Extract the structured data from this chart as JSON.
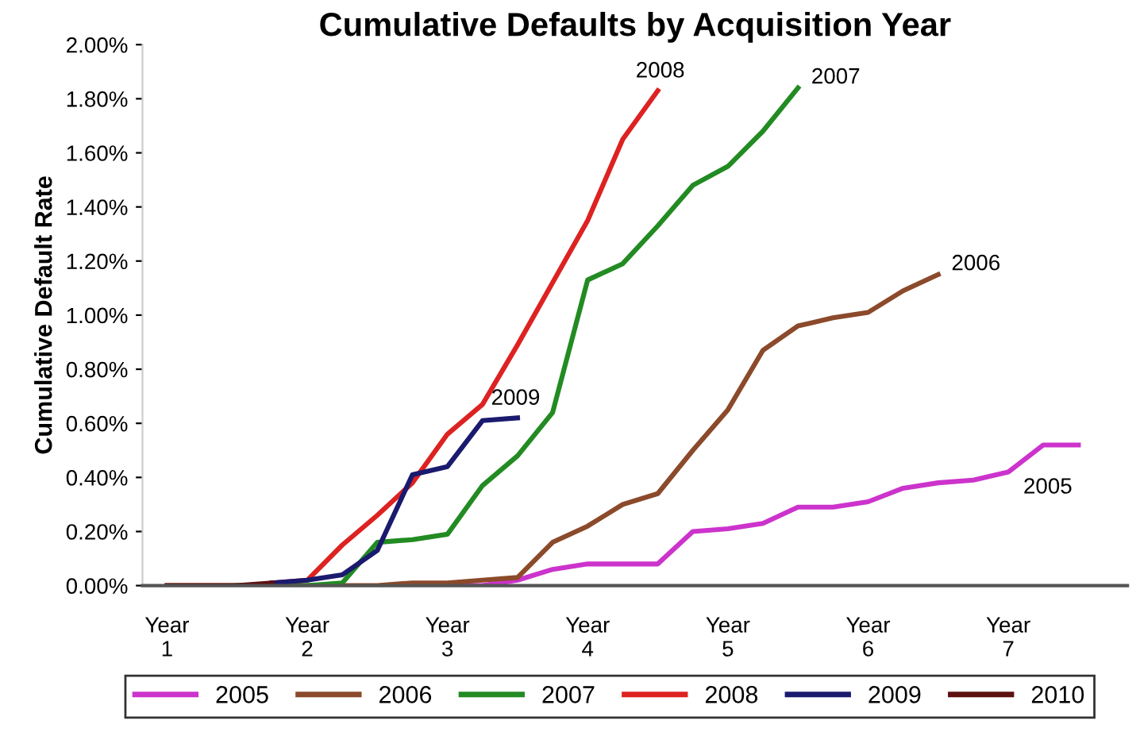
{
  "chart_data": {
    "type": "line",
    "title": "Cumulative Defaults by Acquisition Year",
    "ylabel": "Cumulative Default Rate",
    "categories": [
      "Year\n1",
      null,
      null,
      null,
      "Year\n2",
      null,
      null,
      null,
      "Year\n3",
      null,
      null,
      null,
      "Year\n4",
      null,
      null,
      null,
      "Year\n5",
      null,
      null,
      null,
      "Year\n6",
      null,
      null,
      null,
      "Year\n7",
      null,
      null
    ],
    "ylim": [
      0,
      2.0
    ],
    "yticks": [
      {
        "value": 0,
        "label": "0.00%"
      },
      {
        "value": 0.2,
        "label": "0.20%"
      },
      {
        "value": 0.4,
        "label": "0.40%"
      },
      {
        "value": 0.6,
        "label": "0.60%"
      },
      {
        "value": 0.8,
        "label": "0.80%"
      },
      {
        "value": 1.0,
        "label": "1.00%"
      },
      {
        "value": 1.2,
        "label": "1.20%"
      },
      {
        "value": 1.4,
        "label": "1.40%"
      },
      {
        "value": 1.6,
        "label": "1.60%"
      },
      {
        "value": 1.8,
        "label": "1.80%"
      },
      {
        "value": 2.0,
        "label": "2.00%"
      }
    ],
    "grid": false,
    "legend": "bottom",
    "marker": "none",
    "line_style": "solid",
    "series": [
      {
        "name": "2005",
        "color": "#cc33cc",
        "values": [
          null,
          null,
          null,
          null,
          null,
          null,
          null,
          null,
          0,
          0,
          0.02,
          0.06,
          0.08,
          0.08,
          0.08,
          0.2,
          0.21,
          0.23,
          0.29,
          0.29,
          0.31,
          0.36,
          0.38,
          0.39,
          0.42,
          0.52,
          0.52
        ]
      },
      {
        "name": "2006",
        "color": "#8b4a2b",
        "values": [
          0,
          0,
          0,
          0,
          0,
          0,
          0,
          0.01,
          0.01,
          0.02,
          0.03,
          0.16,
          0.22,
          0.3,
          0.34,
          0.5,
          0.65,
          0.87,
          0.96,
          0.99,
          1.01,
          1.09,
          1.15,
          null,
          null,
          null,
          null
        ]
      },
      {
        "name": "2007",
        "color": "#228b22",
        "values": [
          null,
          null,
          0,
          0,
          0,
          0.01,
          0.16,
          0.17,
          0.19,
          0.37,
          0.48,
          0.64,
          1.13,
          1.19,
          1.33,
          1.48,
          1.55,
          1.68,
          1.84,
          null,
          null,
          null,
          null,
          null,
          null,
          null,
          null
        ]
      },
      {
        "name": "2008",
        "color": "#dd2222",
        "values": [
          null,
          null,
          null,
          0.01,
          0.02,
          0.15,
          0.26,
          0.38,
          0.56,
          0.67,
          0.89,
          1.12,
          1.35,
          1.65,
          1.83,
          null,
          null,
          null,
          null,
          null,
          null,
          null,
          null,
          null,
          null,
          null,
          null
        ]
      },
      {
        "name": "2009",
        "color": "#1a1a6e",
        "values": [
          null,
          null,
          null,
          0.01,
          0.02,
          0.04,
          0.13,
          0.41,
          0.44,
          0.61,
          0.62,
          null,
          null,
          null,
          null,
          null,
          null,
          null,
          null,
          null,
          null,
          null,
          null,
          null,
          null,
          null,
          null
        ]
      },
      {
        "name": "2010",
        "color": "#5c1010",
        "values": [
          0,
          0,
          0,
          0.01,
          null,
          null,
          null,
          null,
          null,
          null,
          null,
          null,
          null,
          null,
          null,
          null,
          null,
          null,
          null,
          null,
          null,
          null,
          null,
          null,
          null,
          null,
          null
        ]
      }
    ],
    "annotations": [
      "2005",
      "2006",
      "2007",
      "2008",
      "2009"
    ]
  }
}
